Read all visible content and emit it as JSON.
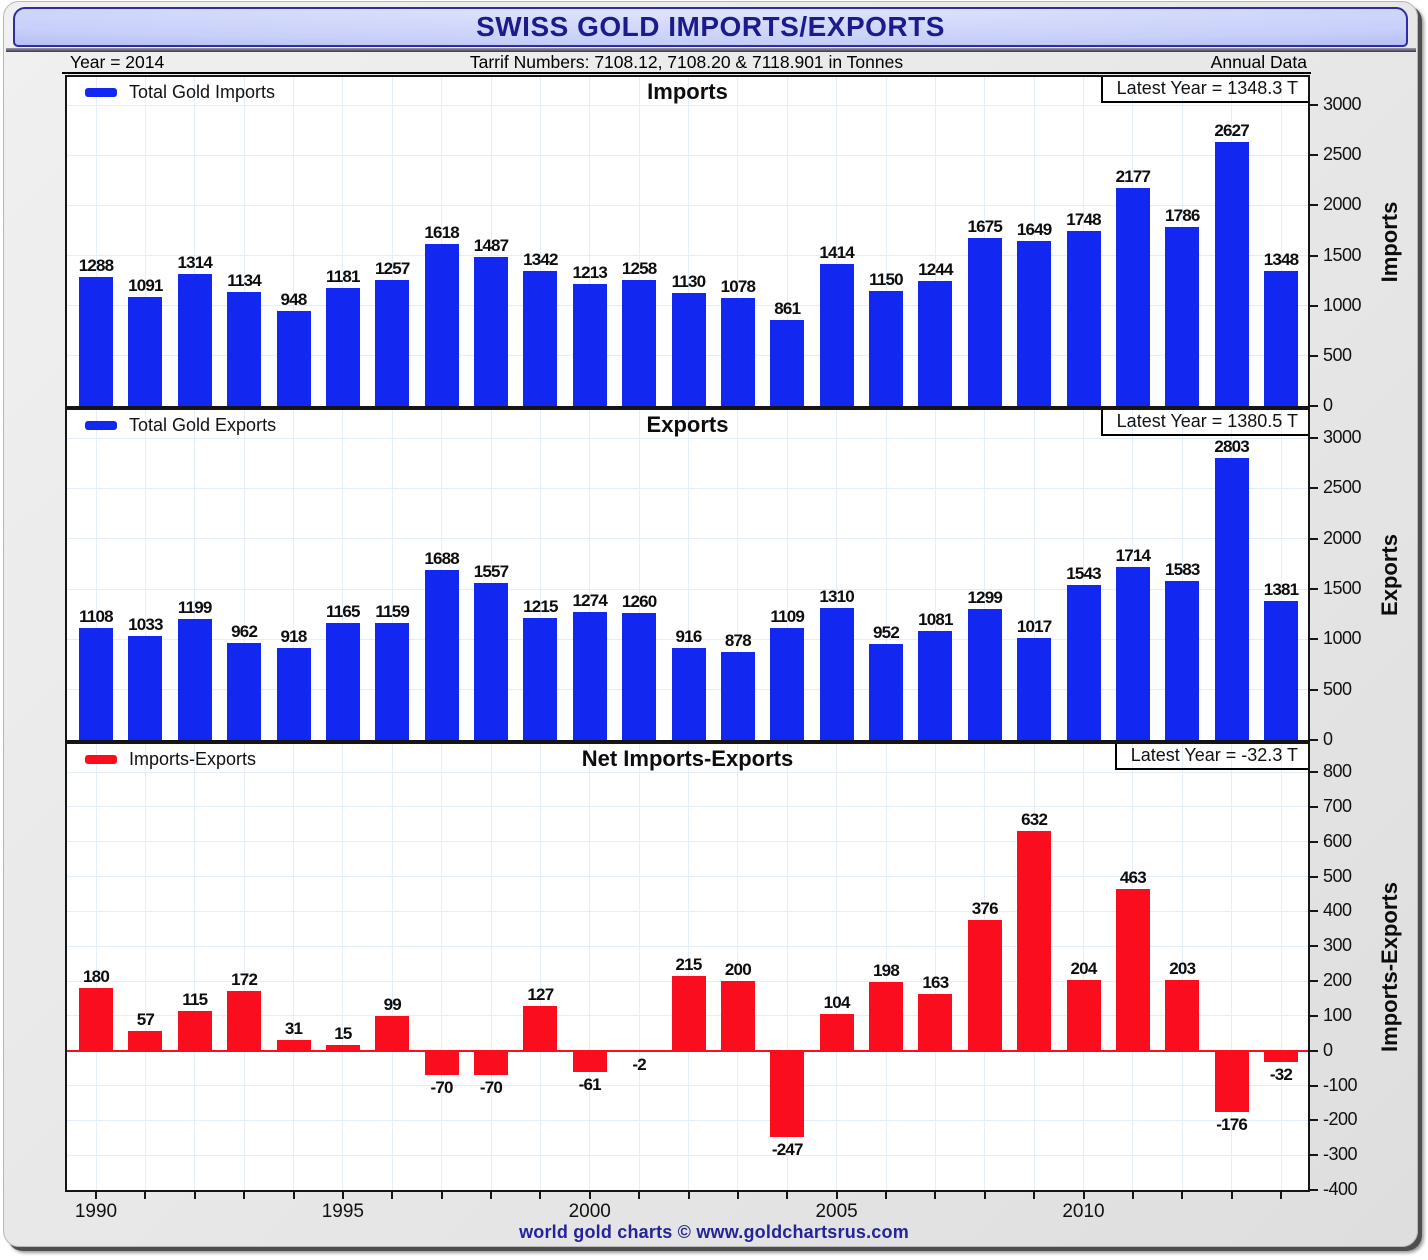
{
  "header": {
    "title": "SWISS GOLD IMPORTS/EXPORTS",
    "year_label": "Year = 2014",
    "tarrif_label": "Tarrif Numbers: 7108.12, 7108.20 & 7118.901 in Tonnes",
    "annual_label": "Annual Data"
  },
  "footer": {
    "credit": "world gold charts © www.goldchartsrus.com"
  },
  "colors": {
    "bar_blue": "#1228f0",
    "bar_red": "#fa0d1c",
    "navy_title": "#1b1b8c",
    "grid": "#e3eef8",
    "panel_border": "#151515",
    "footer_navy": "#242499"
  },
  "x_axis": {
    "years": [
      1990,
      1991,
      1992,
      1993,
      1994,
      1995,
      1996,
      1997,
      1998,
      1999,
      2000,
      2001,
      2002,
      2003,
      2004,
      2005,
      2006,
      2007,
      2008,
      2009,
      2010,
      2011,
      2012,
      2013,
      2014
    ],
    "tick_labels": [
      "1990",
      "1995",
      "2000",
      "2005",
      "2010"
    ],
    "tick_label_positions": [
      0,
      5,
      10,
      15,
      20
    ]
  },
  "chart_data": [
    {
      "type": "bar",
      "id": "imports",
      "title": "Imports",
      "legend": "Total Gold Imports",
      "latest": "Latest Year = 1348.3 T",
      "color": "#1228f0",
      "ylabel": "Imports",
      "ylim": [
        0,
        3000
      ],
      "yticks": [
        0,
        500,
        1000,
        1500,
        2000,
        2500,
        3000
      ],
      "grid_step": 500,
      "categories": [
        1990,
        1991,
        1992,
        1993,
        1994,
        1995,
        1996,
        1997,
        1998,
        1999,
        2000,
        2001,
        2002,
        2003,
        2004,
        2005,
        2006,
        2007,
        2008,
        2009,
        2010,
        2011,
        2012,
        2013,
        2014
      ],
      "values": [
        1288,
        1091,
        1314,
        1134,
        948,
        1181,
        1257,
        1618,
        1487,
        1342,
        1213,
        1258,
        1130,
        1078,
        861,
        1414,
        1150,
        1244,
        1675,
        1649,
        1748,
        2177,
        1786,
        2627,
        1348
      ]
    },
    {
      "type": "bar",
      "id": "exports",
      "title": "Exports",
      "legend": "Total Gold Exports",
      "latest": "Latest Year = 1380.5 T",
      "color": "#1228f0",
      "ylabel": "Exports",
      "ylim": [
        0,
        3000
      ],
      "yticks": [
        0,
        500,
        1000,
        1500,
        2000,
        2500,
        3000
      ],
      "grid_step": 500,
      "categories": [
        1990,
        1991,
        1992,
        1993,
        1994,
        1995,
        1996,
        1997,
        1998,
        1999,
        2000,
        2001,
        2002,
        2003,
        2004,
        2005,
        2006,
        2007,
        2008,
        2009,
        2010,
        2011,
        2012,
        2013,
        2014
      ],
      "values": [
        1108,
        1033,
        1199,
        962,
        918,
        1165,
        1159,
        1688,
        1557,
        1215,
        1274,
        1260,
        916,
        878,
        1109,
        1310,
        952,
        1081,
        1299,
        1017,
        1543,
        1714,
        1583,
        2803,
        1381
      ]
    },
    {
      "type": "bar",
      "id": "net-imports-exports",
      "title": "Net Imports-Exports",
      "legend": "Imports-Exports",
      "latest": "Latest Year = -32.3 T",
      "color": "#fa0d1c",
      "ylabel": "Imports-Exports",
      "ylim": [
        -400,
        800
      ],
      "yticks": [
        -400,
        -300,
        -200,
        -100,
        0,
        100,
        200,
        300,
        400,
        500,
        600,
        700,
        800
      ],
      "grid_step": 100,
      "zero_line_color": "#fa0d1c",
      "categories": [
        1990,
        1991,
        1992,
        1993,
        1994,
        1995,
        1996,
        1997,
        1998,
        1999,
        2000,
        2001,
        2002,
        2003,
        2004,
        2005,
        2006,
        2007,
        2008,
        2009,
        2010,
        2011,
        2012,
        2013,
        2014
      ],
      "values": [
        180,
        57,
        115,
        172,
        31,
        15,
        99,
        -70,
        -70,
        127,
        -61,
        -2,
        215,
        200,
        -247,
        104,
        198,
        163,
        376,
        632,
        204,
        463,
        203,
        -176,
        -32
      ]
    }
  ]
}
